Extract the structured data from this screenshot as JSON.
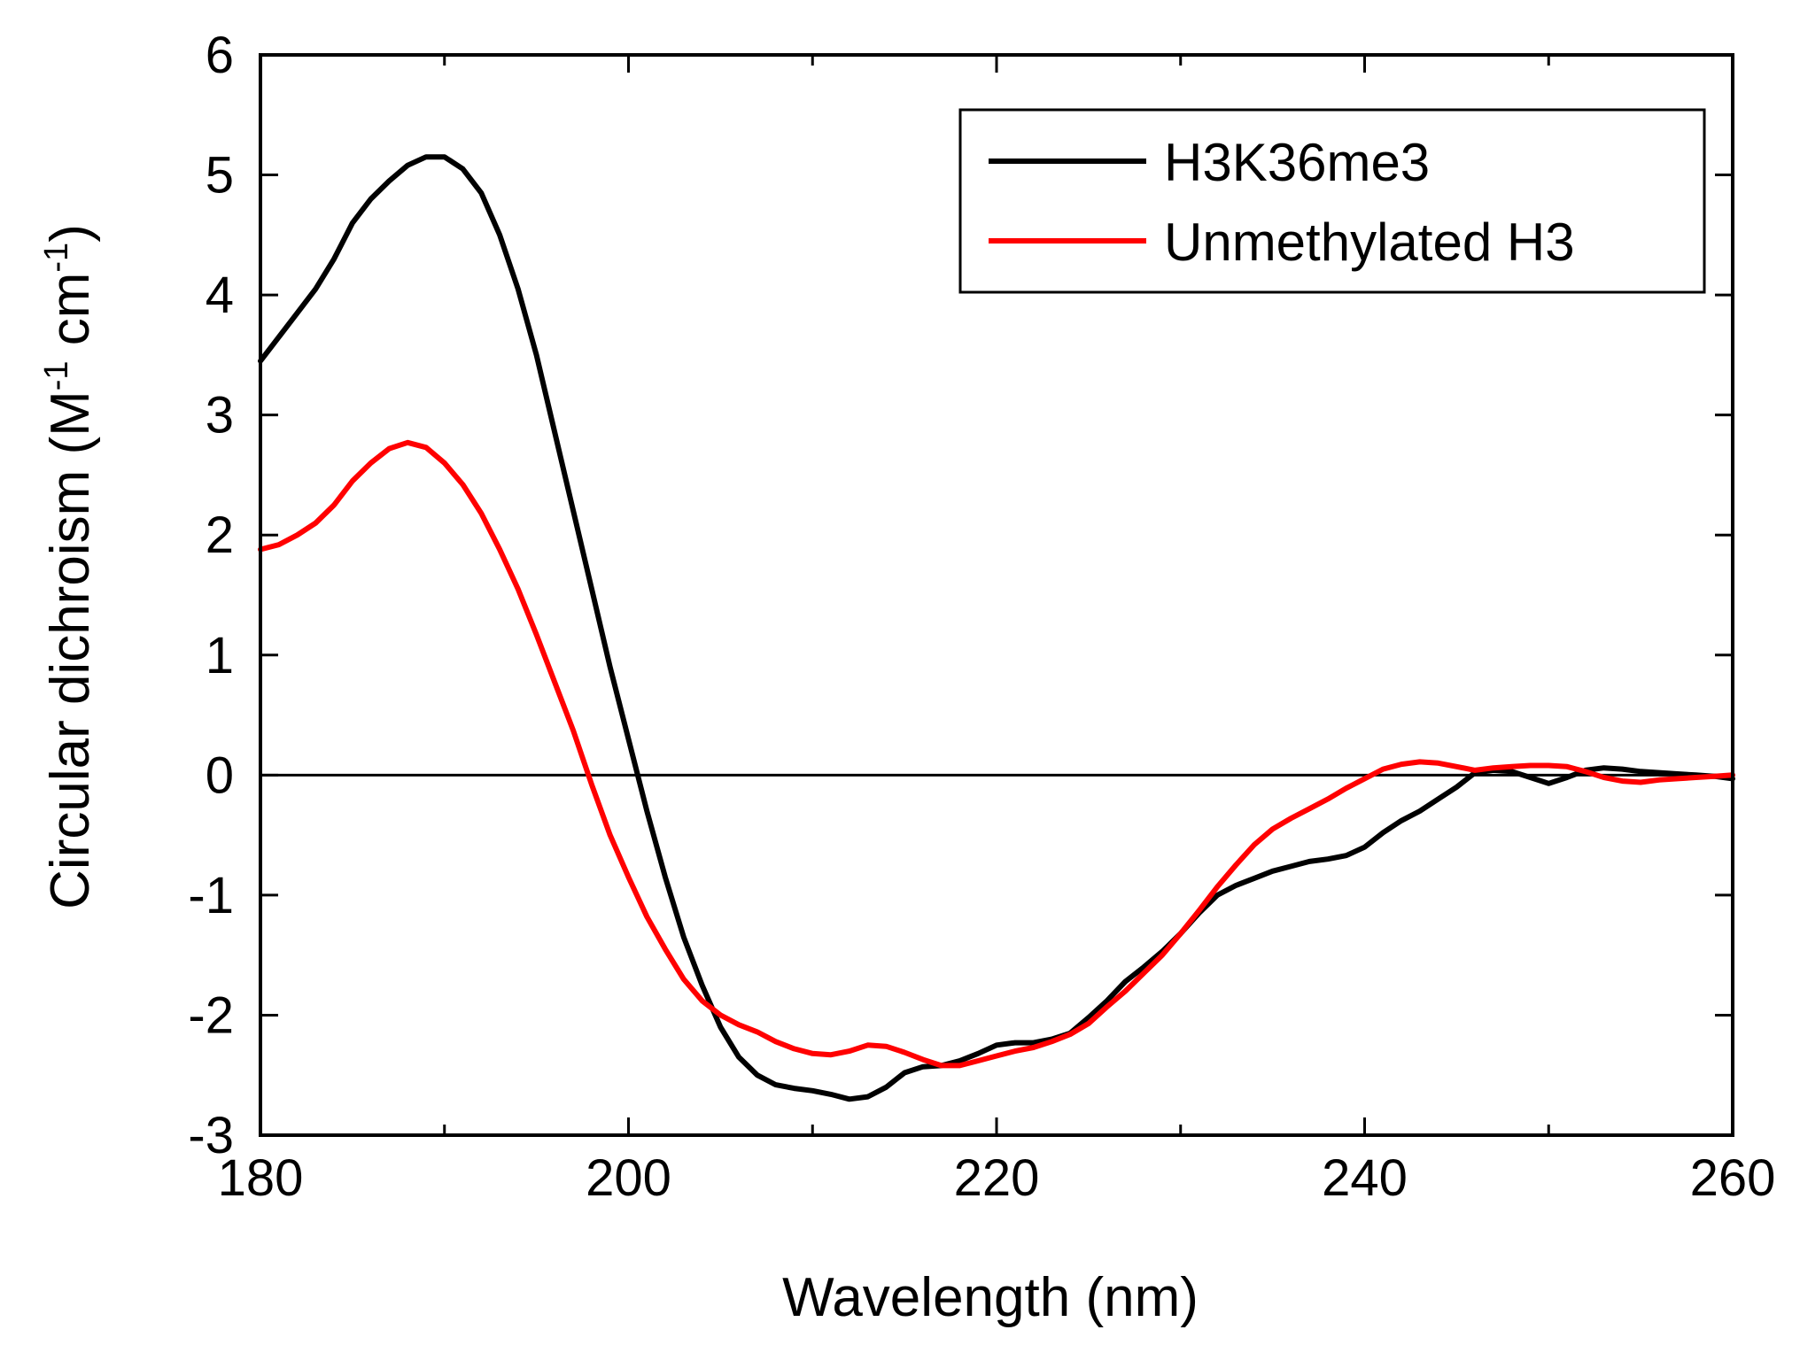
{
  "chart_data": {
    "type": "line",
    "title": "",
    "xlabel": "Wavelength (nm)",
    "ylabel": {
      "main": "Circular dichroism (M",
      "sup1": "-1",
      "mid": " cm",
      "sup2": "-1",
      "end": ")"
    },
    "xlim": [
      180,
      260
    ],
    "ylim": [
      -3,
      6
    ],
    "x_ticks": [
      180,
      200,
      220,
      240,
      260
    ],
    "y_ticks": [
      -3,
      -2,
      -1,
      0,
      1,
      2,
      3,
      4,
      5,
      6
    ],
    "zero_line": true,
    "grid": false,
    "legend_position": "top-right",
    "series": [
      {
        "name": "H3K36me3",
        "color": "#000000",
        "points": [
          [
            180,
            3.45
          ],
          [
            181,
            3.65
          ],
          [
            182,
            3.85
          ],
          [
            183,
            4.05
          ],
          [
            184,
            4.3
          ],
          [
            185,
            4.6
          ],
          [
            186,
            4.8
          ],
          [
            187,
            4.95
          ],
          [
            188,
            5.08
          ],
          [
            189,
            5.15
          ],
          [
            190,
            5.15
          ],
          [
            191,
            5.05
          ],
          [
            192,
            4.85
          ],
          [
            193,
            4.5
          ],
          [
            194,
            4.05
          ],
          [
            195,
            3.5
          ],
          [
            196,
            2.85
          ],
          [
            197,
            2.2
          ],
          [
            198,
            1.55
          ],
          [
            199,
            0.9
          ],
          [
            200,
            0.3
          ],
          [
            201,
            -0.3
          ],
          [
            202,
            -0.85
          ],
          [
            203,
            -1.35
          ],
          [
            204,
            -1.75
          ],
          [
            205,
            -2.1
          ],
          [
            206,
            -2.35
          ],
          [
            207,
            -2.5
          ],
          [
            208,
            -2.58
          ],
          [
            209,
            -2.61
          ],
          [
            210,
            -2.63
          ],
          [
            211,
            -2.66
          ],
          [
            212,
            -2.7
          ],
          [
            213,
            -2.68
          ],
          [
            214,
            -2.6
          ],
          [
            215,
            -2.48
          ],
          [
            216,
            -2.43
          ],
          [
            217,
            -2.42
          ],
          [
            218,
            -2.38
          ],
          [
            219,
            -2.32
          ],
          [
            220,
            -2.25
          ],
          [
            221,
            -2.23
          ],
          [
            222,
            -2.23
          ],
          [
            223,
            -2.2
          ],
          [
            224,
            -2.15
          ],
          [
            225,
            -2.02
          ],
          [
            226,
            -1.88
          ],
          [
            227,
            -1.72
          ],
          [
            228,
            -1.6
          ],
          [
            229,
            -1.47
          ],
          [
            230,
            -1.32
          ],
          [
            231,
            -1.15
          ],
          [
            232,
            -1.0
          ],
          [
            233,
            -0.92
          ],
          [
            234,
            -0.86
          ],
          [
            235,
            -0.8
          ],
          [
            236,
            -0.76
          ],
          [
            237,
            -0.72
          ],
          [
            238,
            -0.7
          ],
          [
            239,
            -0.67
          ],
          [
            240,
            -0.6
          ],
          [
            241,
            -0.48
          ],
          [
            242,
            -0.38
          ],
          [
            243,
            -0.3
          ],
          [
            244,
            -0.2
          ],
          [
            245,
            -0.1
          ],
          [
            246,
            0.02
          ],
          [
            247,
            0.04
          ],
          [
            248,
            0.03
          ],
          [
            249,
            -0.02
          ],
          [
            250,
            -0.07
          ],
          [
            251,
            -0.02
          ],
          [
            252,
            0.04
          ],
          [
            253,
            0.06
          ],
          [
            254,
            0.05
          ],
          [
            255,
            0.03
          ],
          [
            256,
            0.02
          ],
          [
            257,
            0.01
          ],
          [
            258,
            0.0
          ],
          [
            259,
            -0.01
          ],
          [
            260,
            -0.03
          ]
        ]
      },
      {
        "name": "Unmethylated H3",
        "color": "#ff0000",
        "points": [
          [
            180,
            1.88
          ],
          [
            181,
            1.92
          ],
          [
            182,
            2.0
          ],
          [
            183,
            2.1
          ],
          [
            184,
            2.25
          ],
          [
            185,
            2.45
          ],
          [
            186,
            2.6
          ],
          [
            187,
            2.72
          ],
          [
            188,
            2.77
          ],
          [
            189,
            2.73
          ],
          [
            190,
            2.6
          ],
          [
            191,
            2.42
          ],
          [
            192,
            2.18
          ],
          [
            193,
            1.88
          ],
          [
            194,
            1.55
          ],
          [
            195,
            1.17
          ],
          [
            196,
            0.77
          ],
          [
            197,
            0.37
          ],
          [
            198,
            -0.08
          ],
          [
            199,
            -0.5
          ],
          [
            200,
            -0.85
          ],
          [
            201,
            -1.18
          ],
          [
            202,
            -1.45
          ],
          [
            203,
            -1.7
          ],
          [
            204,
            -1.88
          ],
          [
            205,
            -2.0
          ],
          [
            206,
            -2.08
          ],
          [
            207,
            -2.14
          ],
          [
            208,
            -2.22
          ],
          [
            209,
            -2.28
          ],
          [
            210,
            -2.32
          ],
          [
            211,
            -2.33
          ],
          [
            212,
            -2.3
          ],
          [
            213,
            -2.25
          ],
          [
            214,
            -2.26
          ],
          [
            215,
            -2.31
          ],
          [
            216,
            -2.37
          ],
          [
            217,
            -2.42
          ],
          [
            218,
            -2.42
          ],
          [
            219,
            -2.38
          ],
          [
            220,
            -2.34
          ],
          [
            221,
            -2.3
          ],
          [
            222,
            -2.27
          ],
          [
            223,
            -2.22
          ],
          [
            224,
            -2.16
          ],
          [
            225,
            -2.07
          ],
          [
            226,
            -1.93
          ],
          [
            227,
            -1.8
          ],
          [
            228,
            -1.65
          ],
          [
            229,
            -1.5
          ],
          [
            230,
            -1.32
          ],
          [
            231,
            -1.13
          ],
          [
            232,
            -0.93
          ],
          [
            233,
            -0.75
          ],
          [
            234,
            -0.58
          ],
          [
            235,
            -0.45
          ],
          [
            236,
            -0.36
          ],
          [
            237,
            -0.28
          ],
          [
            238,
            -0.2
          ],
          [
            239,
            -0.11
          ],
          [
            240,
            -0.03
          ],
          [
            241,
            0.05
          ],
          [
            242,
            0.09
          ],
          [
            243,
            0.11
          ],
          [
            244,
            0.1
          ],
          [
            245,
            0.07
          ],
          [
            246,
            0.04
          ],
          [
            247,
            0.06
          ],
          [
            248,
            0.07
          ],
          [
            249,
            0.08
          ],
          [
            250,
            0.08
          ],
          [
            251,
            0.07
          ],
          [
            252,
            0.03
          ],
          [
            253,
            -0.02
          ],
          [
            254,
            -0.05
          ],
          [
            255,
            -0.06
          ],
          [
            256,
            -0.04
          ],
          [
            257,
            -0.03
          ],
          [
            258,
            -0.02
          ],
          [
            259,
            -0.01
          ],
          [
            260,
            0.0
          ]
        ]
      }
    ]
  }
}
